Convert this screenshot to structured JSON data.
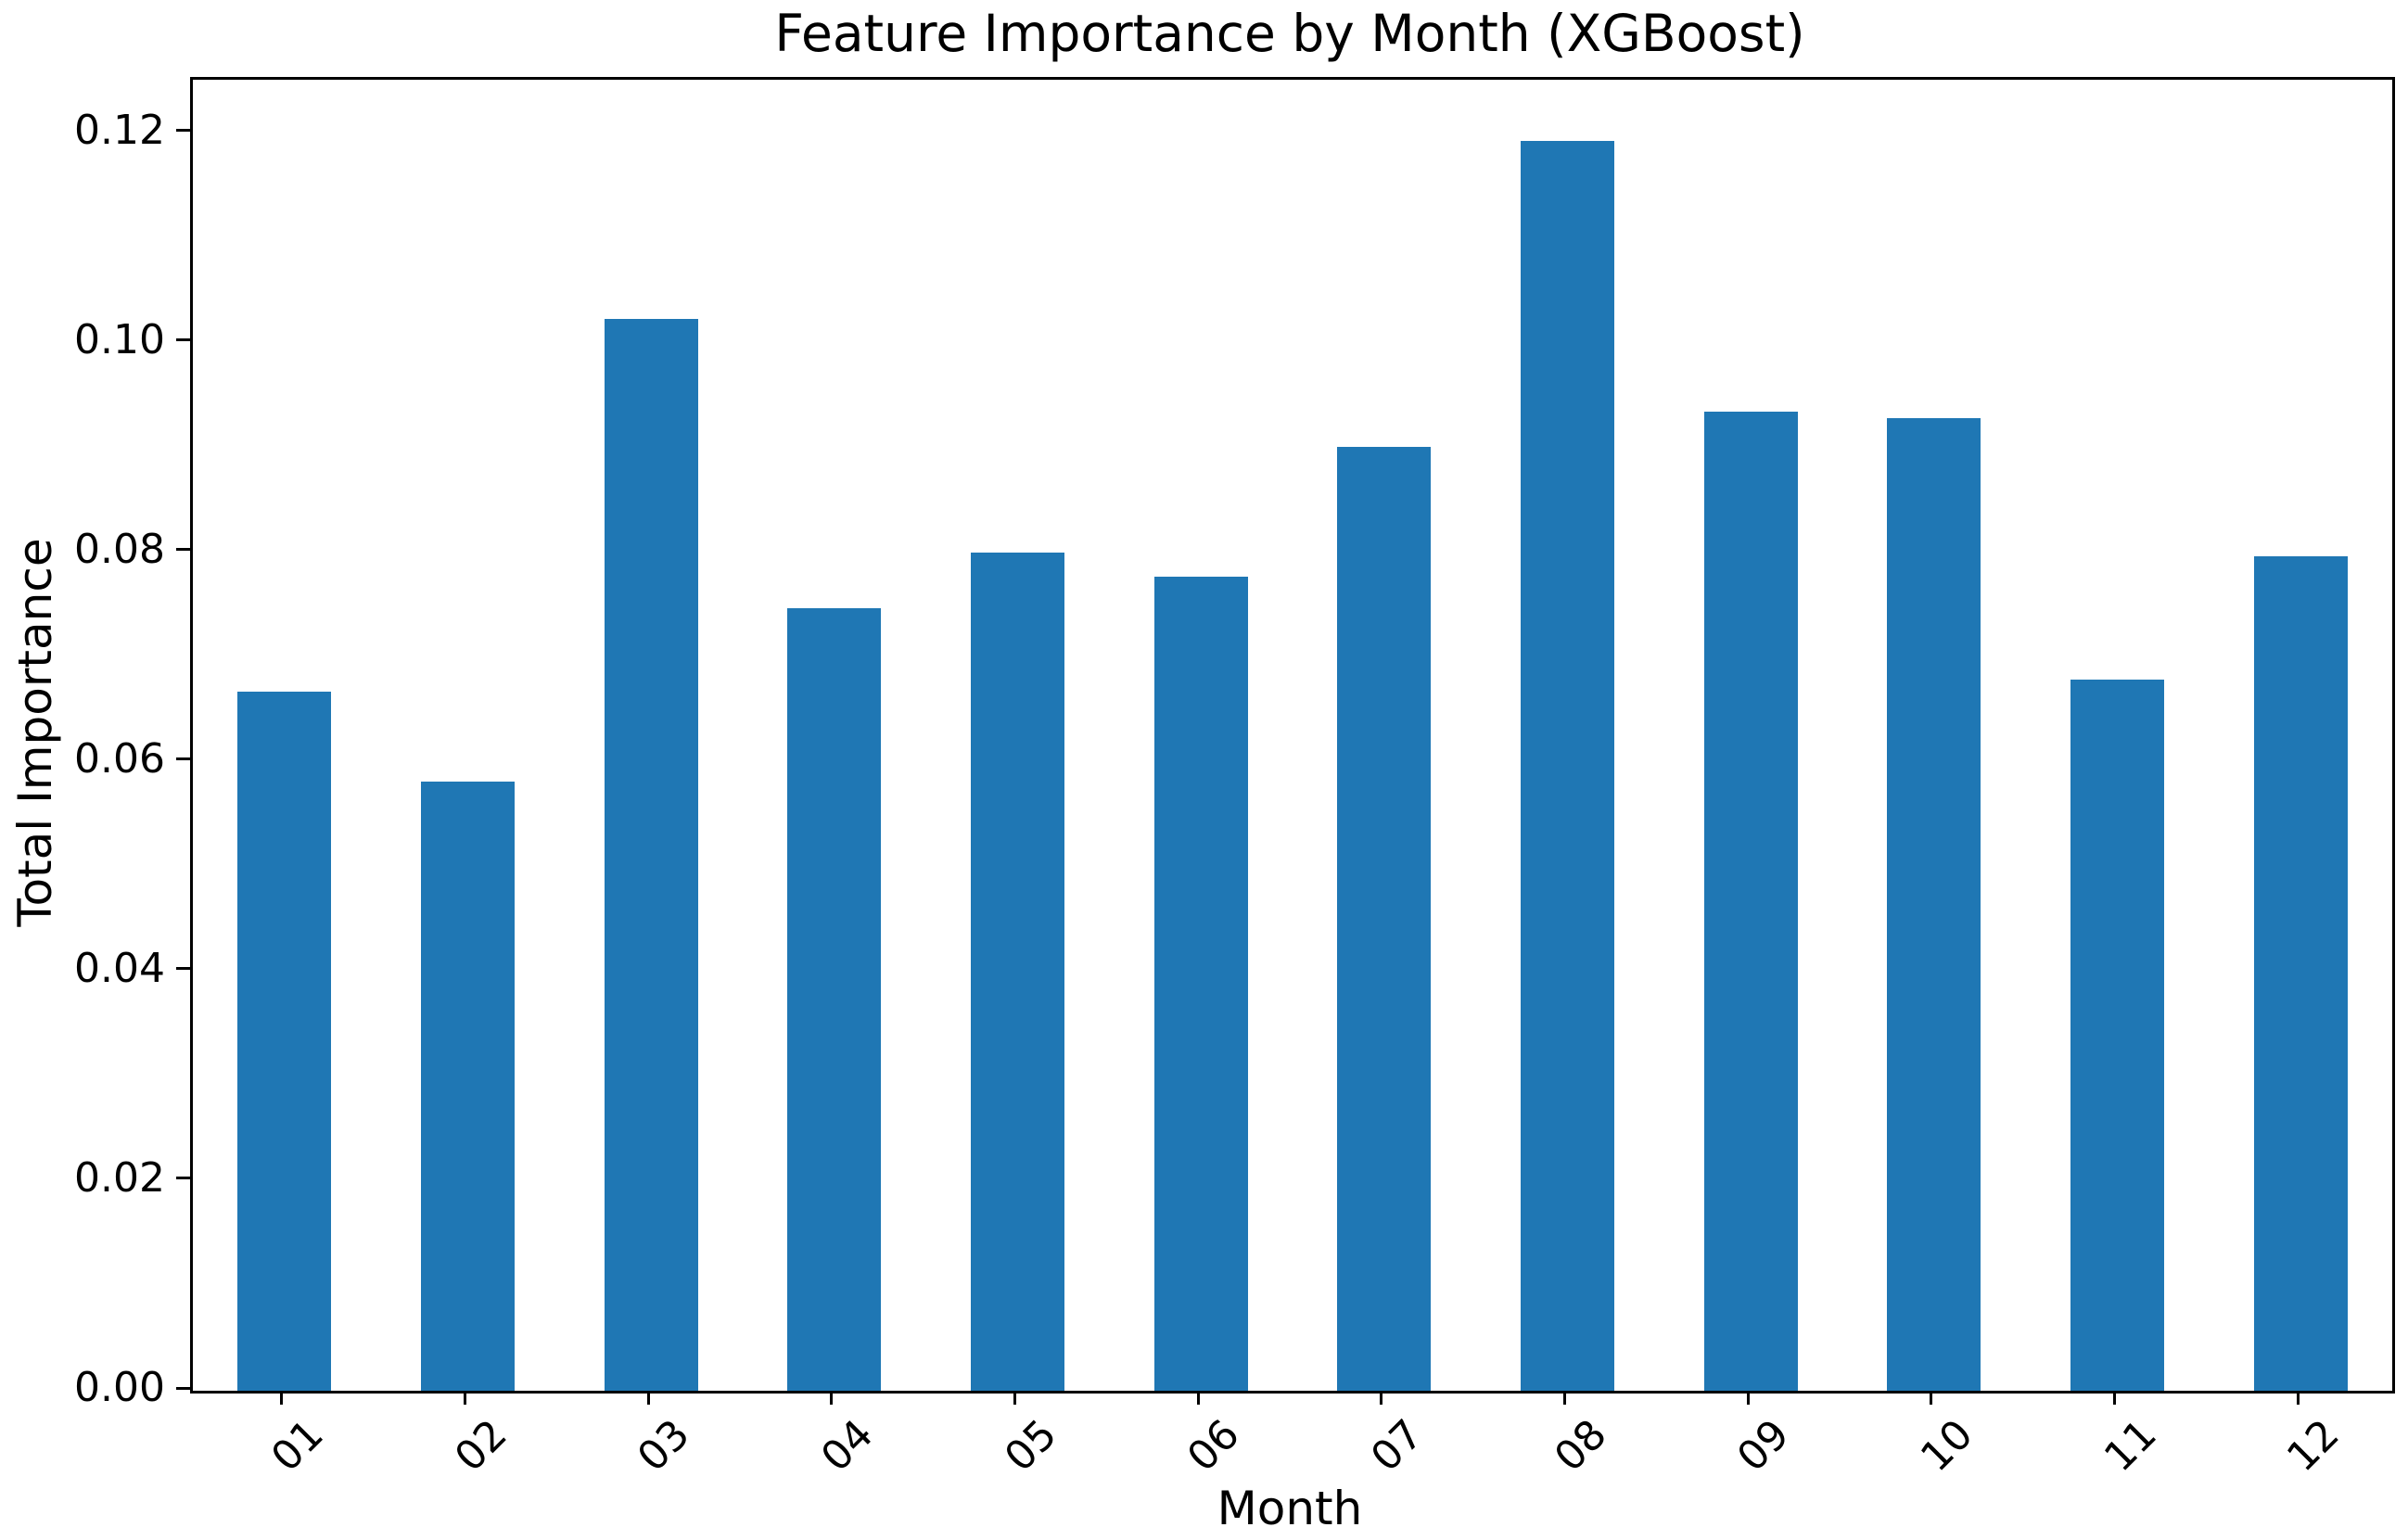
{
  "chart_data": {
    "type": "bar",
    "title": "Feature Importance by Month (XGBoost)",
    "xlabel": "Month",
    "ylabel": "Total Importance",
    "categories": [
      "01",
      "02",
      "03",
      "04",
      "05",
      "06",
      "07",
      "08",
      "09",
      "10",
      "11",
      "12"
    ],
    "values": [
      0.0667,
      0.0581,
      0.1023,
      0.0747,
      0.08,
      0.0777,
      0.0901,
      0.1193,
      0.0934,
      0.0928,
      0.0679,
      0.0796
    ],
    "ylim": [
      0,
      0.1251
    ],
    "yticks": [
      0.0,
      0.02,
      0.04,
      0.06,
      0.08,
      0.1,
      0.12
    ],
    "ytick_labels": [
      "0.00",
      "0.02",
      "0.04",
      "0.06",
      "0.08",
      "0.10",
      "0.12"
    ],
    "xtick_rotation_deg": 45,
    "bar_color": "#1f77b4",
    "bar_width_fraction": 0.51,
    "grid": false,
    "legend": "none",
    "text_color": "#000000",
    "spine_color": "#000000"
  }
}
